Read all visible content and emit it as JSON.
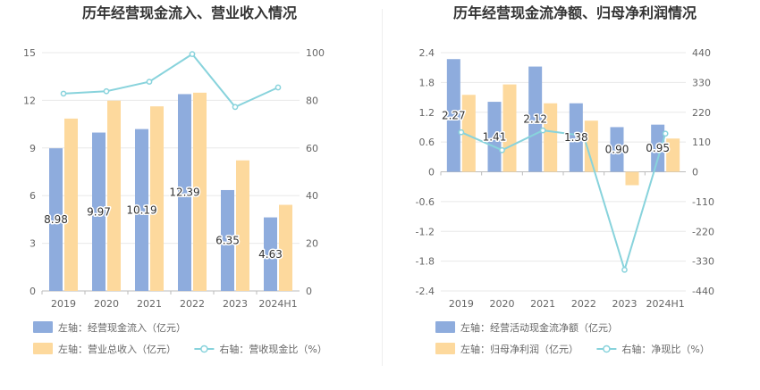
{
  "colors": {
    "blue": "#8EACDD",
    "orange": "#FDD99D",
    "line": "#88D3DC",
    "grid": "#E8E8E8",
    "axis_text": "#666666",
    "title": "#333333",
    "label": "#333333"
  },
  "chart_data": [
    {
      "type": "bar",
      "title": "历年经营现金流入、营业收入情况",
      "categories": [
        "2019",
        "2020",
        "2021",
        "2022",
        "2023",
        "2024H1"
      ],
      "left_axis": {
        "min": 0,
        "max": 15,
        "ticks": [
          "0",
          "3",
          "6",
          "9",
          "12",
          "15"
        ]
      },
      "right_axis": {
        "min": 0,
        "max": 100,
        "ticks": [
          "0",
          "20",
          "40",
          "60",
          "80",
          "100"
        ]
      },
      "series": [
        {
          "name": "左轴：经营现金流入（亿元）",
          "axis": "left",
          "kind": "bar",
          "color": "#8EACDD",
          "values": [
            8.98,
            9.97,
            10.19,
            12.39,
            6.35,
            4.63
          ],
          "labels": [
            "8.98",
            "9.97",
            "10.19",
            "12.39",
            "6.35",
            "4.63"
          ]
        },
        {
          "name": "左轴：营业总收入（亿元）",
          "axis": "left",
          "kind": "bar",
          "color": "#FDD99D",
          "values": [
            10.85,
            11.98,
            11.62,
            12.48,
            8.22,
            5.42
          ]
        },
        {
          "name": "右轴：营收现金比（%）",
          "axis": "right",
          "kind": "line",
          "color": "#88D3DC",
          "values": [
            82.8,
            83.8,
            87.8,
            99.4,
            77.2,
            85.4
          ]
        }
      ],
      "legend": [
        {
          "label": "左轴：经营现金流入（亿元）",
          "kind": "bar",
          "color": "#8EACDD"
        },
        {
          "label": "左轴：营业总收入（亿元）",
          "kind": "bar",
          "color": "#FDD99D"
        },
        {
          "label": "右轴：营收现金比（%）",
          "kind": "line",
          "color": "#88D3DC"
        }
      ]
    },
    {
      "type": "bar",
      "title": "历年经营现金流净额、归母净利润情况",
      "categories": [
        "2019",
        "2020",
        "2021",
        "2022",
        "2023",
        "2024H1"
      ],
      "left_axis": {
        "min": -2.4,
        "max": 2.4,
        "ticks": [
          "-2.4",
          "-1.8",
          "-1.2",
          "-0.6",
          "0",
          "0.6",
          "1.2",
          "1.8",
          "2.4"
        ]
      },
      "right_axis": {
        "min": -440,
        "max": 440,
        "ticks": [
          "-440",
          "-330",
          "-220",
          "-110",
          "0",
          "110",
          "220",
          "330",
          "440"
        ]
      },
      "series": [
        {
          "name": "左轴：经营活动现金流净额（亿元）",
          "axis": "left",
          "kind": "bar",
          "color": "#8EACDD",
          "values": [
            2.27,
            1.41,
            2.12,
            1.38,
            0.9,
            0.95
          ],
          "labels": [
            "2.27",
            "1.41",
            "2.12",
            "1.38",
            "0.90",
            "0.95"
          ]
        },
        {
          "name": "左轴：归母净利润（亿元）",
          "axis": "left",
          "kind": "bar",
          "color": "#FDD99D",
          "values": [
            1.55,
            1.76,
            1.38,
            1.03,
            -0.27,
            0.67
          ]
        },
        {
          "name": "右轴：净现比（%）",
          "axis": "right",
          "kind": "line",
          "color": "#88D3DC",
          "values": [
            146,
            80,
            153,
            133,
            -362,
            141
          ]
        }
      ],
      "legend": [
        {
          "label": "左轴：经营活动现金流净额（亿元）",
          "kind": "bar",
          "color": "#8EACDD"
        },
        {
          "label": "左轴：归母净利润（亿元）",
          "kind": "bar",
          "color": "#FDD99D"
        },
        {
          "label": "右轴：净现比（%）",
          "kind": "line",
          "color": "#88D3DC"
        }
      ]
    }
  ]
}
